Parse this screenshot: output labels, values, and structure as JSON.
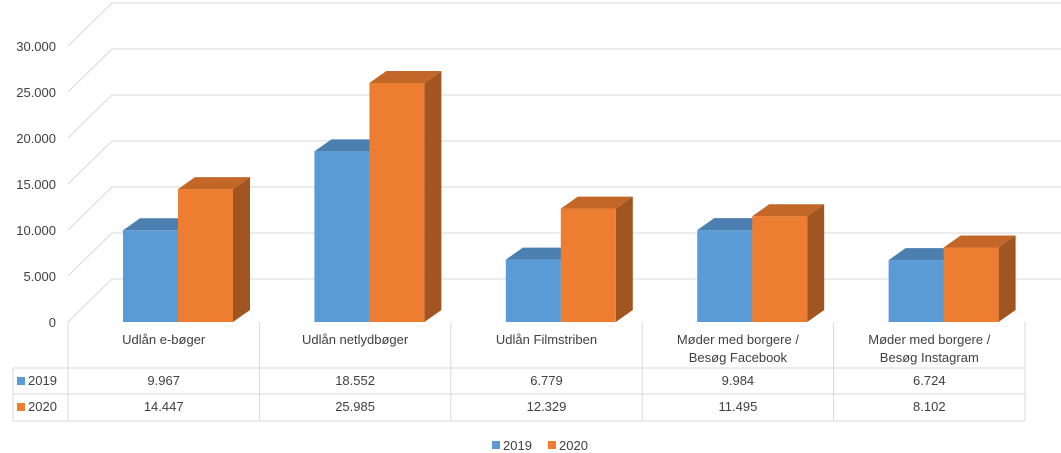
{
  "chart_data": {
    "type": "bar",
    "style": "3d-clustered-column-with-data-table",
    "categories": [
      [
        "Udlån e-bøger"
      ],
      [
        "Udlån netlydbøger"
      ],
      [
        "Udlån Filmstriben"
      ],
      [
        "Møder med borgere /",
        "Besøg Facebook"
      ],
      [
        "Møder med borgere /",
        "Besøg Instagram"
      ]
    ],
    "series": [
      {
        "name": "2019",
        "color": "#5b9bd5",
        "values": [
          9967,
          18552,
          6779,
          9984,
          6724
        ],
        "labels": [
          "9.967",
          "18.552",
          "6.779",
          "9.984",
          "6.724"
        ]
      },
      {
        "name": "2020",
        "color": "#ed7d31",
        "values": [
          14447,
          25985,
          12329,
          11495,
          8102
        ],
        "labels": [
          "14.447",
          "25.985",
          "12.329",
          "11.495",
          "8.102"
        ]
      }
    ],
    "yticks": [
      0,
      5000,
      10000,
      15000,
      20000,
      25000,
      30000
    ],
    "ytick_labels": [
      "0",
      "5.000",
      "10.000",
      "15.000",
      "20.000",
      "25.000",
      "30.000"
    ],
    "ylim": [
      0,
      33000
    ],
    "grid": true,
    "legend": "bottom-center"
  }
}
